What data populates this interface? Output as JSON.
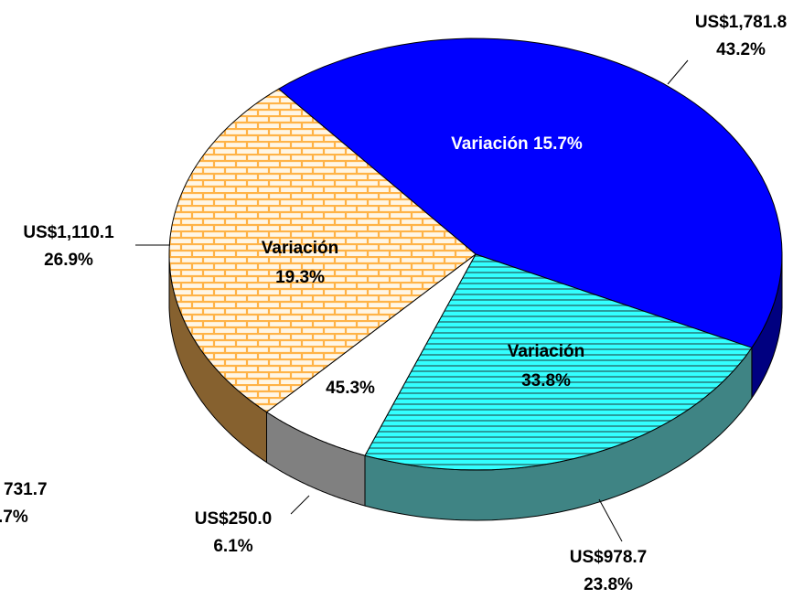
{
  "chart_data": {
    "type": "pie3d",
    "categories": [
      null,
      null,
      null,
      null
    ],
    "values": [
      1781.8,
      978.7,
      250.0,
      1110.1
    ],
    "value_labels": [
      "US$1,781.8",
      "US$978.7",
      "US$250.0",
      "US$1,110.1"
    ],
    "percent_labels": [
      "43.2%",
      "23.8%",
      "6.1%",
      "26.9%"
    ],
    "inner_labels": [
      [
        "Variación 15.7%"
      ],
      [
        "Variación",
        "33.8%"
      ],
      [
        "45.3%"
      ],
      [
        "Variación",
        "19.3%"
      ]
    ],
    "colors": [
      "#0000ff",
      "#33ffff",
      "#ffffff",
      "#ffcc66"
    ],
    "annotations": [
      "731.7",
      ".7%"
    ]
  }
}
